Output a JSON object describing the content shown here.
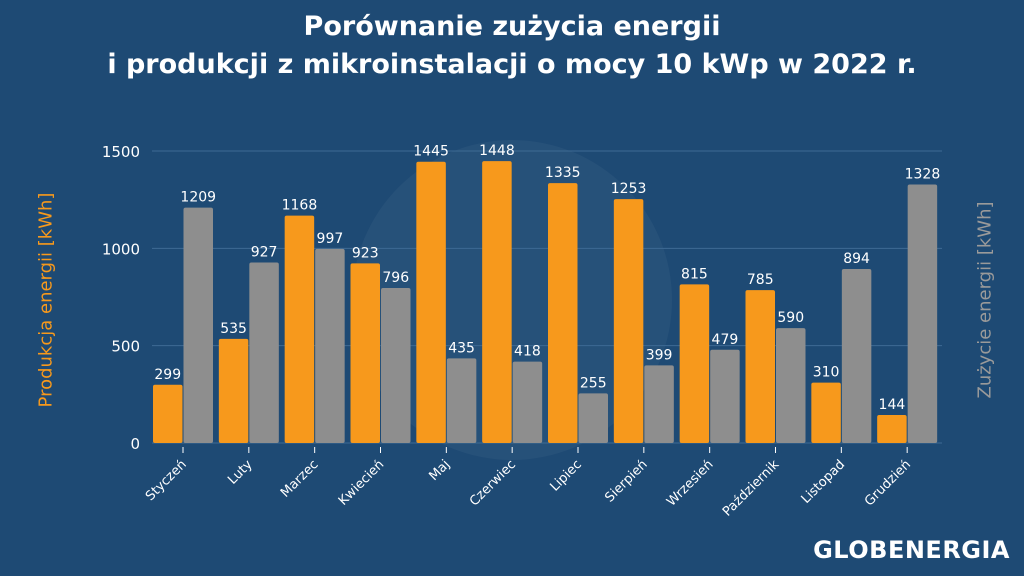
{
  "chart_data": {
    "type": "bar",
    "title_line1": "Porównanie zużycia energii",
    "title_line2": "i produkcji z mikroinstalacji o mocy 10 kWp w 2022 r.",
    "ylabel_left": "Produkcja energii [kWh]",
    "ylabel_right": "Zużycie energii [kWh]",
    "ylim": [
      0,
      1500
    ],
    "yticks": [
      0,
      500,
      1000,
      1500
    ],
    "grid": true,
    "categories": [
      "Styczeń",
      "Luty",
      "Marzec",
      "Kwiecień",
      "Maj",
      "Czerwiec",
      "Lipiec",
      "Sierpień",
      "Wrzesień",
      "Październik",
      "Listopad",
      "Grudzień"
    ],
    "series": [
      {
        "name": "Produkcja energii [kWh]",
        "color": "#f7991c",
        "values": [
          299,
          535,
          1168,
          923,
          1445,
          1448,
          1335,
          1253,
          815,
          785,
          310,
          144
        ]
      },
      {
        "name": "Zużycie energii [kWh]",
        "color": "#8e8e8e",
        "values": [
          1209,
          927,
          997,
          796,
          435,
          418,
          255,
          399,
          479,
          590,
          894,
          1328
        ]
      }
    ]
  },
  "logo": "GLOBENERGIA",
  "colors": {
    "background": "#1e4a74",
    "production": "#f7991c",
    "consumption": "#8e8e8e"
  }
}
